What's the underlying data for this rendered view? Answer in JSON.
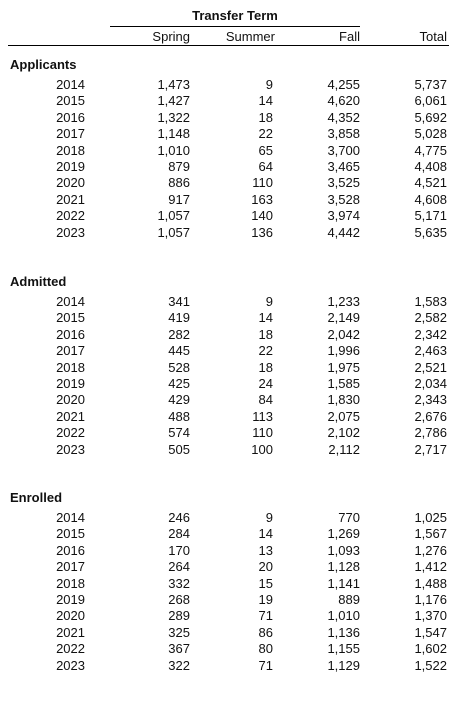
{
  "header": {
    "group_title": "Transfer Term",
    "columns": [
      "Spring",
      "Summer",
      "Fall",
      "Total"
    ]
  },
  "sections": [
    {
      "label": "Applicants",
      "rows": [
        {
          "year": "2014",
          "spring": "1,473",
          "summer": "9",
          "fall": "4,255",
          "total": "5,737"
        },
        {
          "year": "2015",
          "spring": "1,427",
          "summer": "14",
          "fall": "4,620",
          "total": "6,061"
        },
        {
          "year": "2016",
          "spring": "1,322",
          "summer": "18",
          "fall": "4,352",
          "total": "5,692"
        },
        {
          "year": "2017",
          "spring": "1,148",
          "summer": "22",
          "fall": "3,858",
          "total": "5,028"
        },
        {
          "year": "2018",
          "spring": "1,010",
          "summer": "65",
          "fall": "3,700",
          "total": "4,775"
        },
        {
          "year": "2019",
          "spring": "879",
          "summer": "64",
          "fall": "3,465",
          "total": "4,408"
        },
        {
          "year": "2020",
          "spring": "886",
          "summer": "110",
          "fall": "3,525",
          "total": "4,521"
        },
        {
          "year": "2021",
          "spring": "917",
          "summer": "163",
          "fall": "3,528",
          "total": "4,608"
        },
        {
          "year": "2022",
          "spring": "1,057",
          "summer": "140",
          "fall": "3,974",
          "total": "5,171"
        },
        {
          "year": "2023",
          "spring": "1,057",
          "summer": "136",
          "fall": "4,442",
          "total": "5,635"
        }
      ]
    },
    {
      "label": "Admitted",
      "rows": [
        {
          "year": "2014",
          "spring": "341",
          "summer": "9",
          "fall": "1,233",
          "total": "1,583"
        },
        {
          "year": "2015",
          "spring": "419",
          "summer": "14",
          "fall": "2,149",
          "total": "2,582"
        },
        {
          "year": "2016",
          "spring": "282",
          "summer": "18",
          "fall": "2,042",
          "total": "2,342"
        },
        {
          "year": "2017",
          "spring": "445",
          "summer": "22",
          "fall": "1,996",
          "total": "2,463"
        },
        {
          "year": "2018",
          "spring": "528",
          "summer": "18",
          "fall": "1,975",
          "total": "2,521"
        },
        {
          "year": "2019",
          "spring": "425",
          "summer": "24",
          "fall": "1,585",
          "total": "2,034"
        },
        {
          "year": "2020",
          "spring": "429",
          "summer": "84",
          "fall": "1,830",
          "total": "2,343"
        },
        {
          "year": "2021",
          "spring": "488",
          "summer": "113",
          "fall": "2,075",
          "total": "2,676"
        },
        {
          "year": "2022",
          "spring": "574",
          "summer": "110",
          "fall": "2,102",
          "total": "2,786"
        },
        {
          "year": "2023",
          "spring": "505",
          "summer": "100",
          "fall": "2,112",
          "total": "2,717"
        }
      ]
    },
    {
      "label": "Enrolled",
      "rows": [
        {
          "year": "2014",
          "spring": "246",
          "summer": "9",
          "fall": "770",
          "total": "1,025"
        },
        {
          "year": "2015",
          "spring": "284",
          "summer": "14",
          "fall": "1,269",
          "total": "1,567"
        },
        {
          "year": "2016",
          "spring": "170",
          "summer": "13",
          "fall": "1,093",
          "total": "1,276"
        },
        {
          "year": "2017",
          "spring": "264",
          "summer": "20",
          "fall": "1,128",
          "total": "1,412"
        },
        {
          "year": "2018",
          "spring": "332",
          "summer": "15",
          "fall": "1,141",
          "total": "1,488"
        },
        {
          "year": "2019",
          "spring": "268",
          "summer": "19",
          "fall": "889",
          "total": "1,176"
        },
        {
          "year": "2020",
          "spring": "289",
          "summer": "71",
          "fall": "1,010",
          "total": "1,370"
        },
        {
          "year": "2021",
          "spring": "325",
          "summer": "86",
          "fall": "1,136",
          "total": "1,547"
        },
        {
          "year": "2022",
          "spring": "367",
          "summer": "80",
          "fall": "1,155",
          "total": "1,602"
        },
        {
          "year": "2023",
          "spring": "322",
          "summer": "71",
          "fall": "1,129",
          "total": "1,522"
        }
      ]
    }
  ]
}
